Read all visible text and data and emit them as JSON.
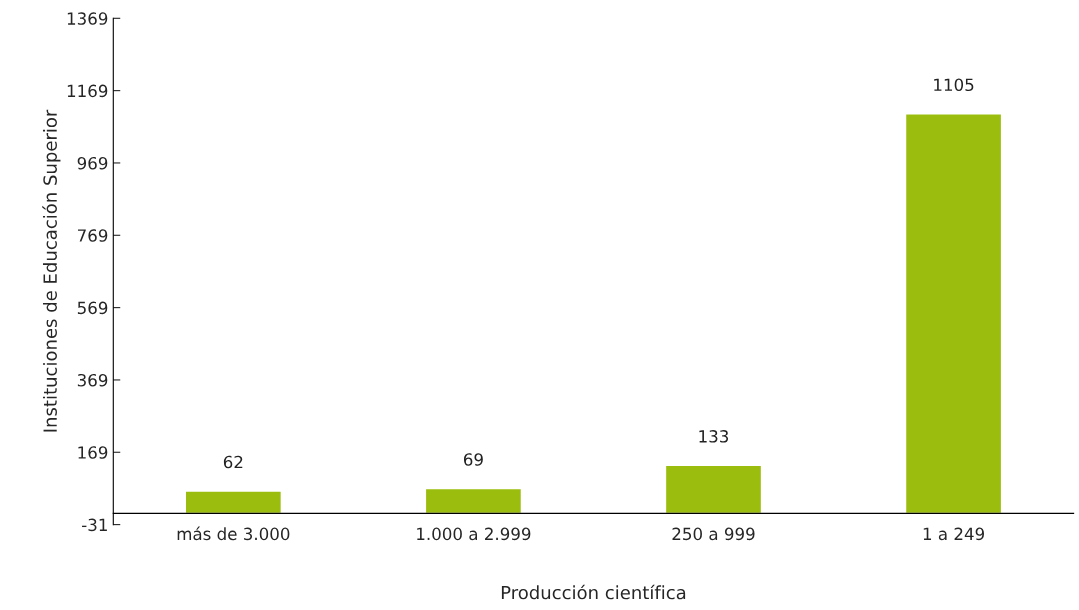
{
  "chart_data": {
    "type": "bar",
    "xlabel": "Producción científica",
    "ylabel": "Instituciones de Educación Superior",
    "categories": [
      "más de 3.000",
      "1.000 a 2.999",
      "250 a 999",
      "1 a 249"
    ],
    "values": [
      62,
      69,
      133,
      1105
    ],
    "color": "#9bbe0e",
    "ylim": [
      -31,
      1369
    ],
    "yticks": [
      -31,
      169,
      369,
      569,
      769,
      969,
      1169,
      1369
    ],
    "grid": false,
    "data_labels": true,
    "legend": false
  }
}
